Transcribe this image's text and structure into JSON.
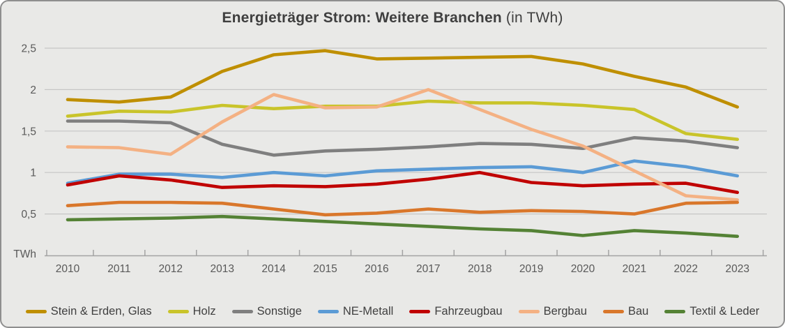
{
  "title": {
    "main": "Energieträger Strom: Weitere Branchen",
    "suffix": " (in TWh)"
  },
  "y_axis": {
    "unit_label": "TWh",
    "tick_labels": [
      "0,5",
      "1",
      "1,5",
      "2",
      "2,5"
    ],
    "tick_values": [
      0.5,
      1,
      1.5,
      2,
      2.5
    ]
  },
  "x_axis": {
    "years": [
      "2010",
      "2011",
      "2012",
      "2013",
      "2014",
      "2015",
      "2016",
      "2017",
      "2018",
      "2019",
      "2020",
      "2021",
      "2022",
      "2023"
    ]
  },
  "colors": {
    "background": "#e9e9e7",
    "gridline": "#c6c6c6",
    "axis": "#a3a3a3",
    "axis_text": "#595959",
    "title_text": "#3f3f3f",
    "legend_text": "#404040"
  },
  "chart_data": {
    "type": "line",
    "title": "Energieträger Strom: Weitere Branchen (in TWh)",
    "xlabel": "",
    "ylabel": "TWh",
    "ylim": [
      0,
      2.5
    ],
    "grid": true,
    "legend_position": "bottom",
    "categories": [
      2010,
      2011,
      2012,
      2013,
      2014,
      2015,
      2016,
      2017,
      2018,
      2019,
      2020,
      2021,
      2022,
      2023
    ],
    "series": [
      {
        "name": "Stein & Erden, Glas",
        "color": "#BF8F00",
        "values": [
          1.88,
          1.85,
          1.91,
          2.22,
          2.42,
          2.47,
          2.37,
          2.38,
          2.39,
          2.4,
          2.31,
          2.16,
          2.03,
          1.79
        ]
      },
      {
        "name": "Holz",
        "color": "#C9C42A",
        "values": [
          1.68,
          1.74,
          1.73,
          1.81,
          1.77,
          1.8,
          1.8,
          1.86,
          1.84,
          1.84,
          1.81,
          1.76,
          1.47,
          1.4
        ]
      },
      {
        "name": "Sonstige",
        "color": "#7F7F7F",
        "values": [
          1.62,
          1.62,
          1.6,
          1.34,
          1.21,
          1.26,
          1.28,
          1.31,
          1.35,
          1.34,
          1.29,
          1.42,
          1.38,
          1.3
        ]
      },
      {
        "name": "NE-Metall",
        "color": "#5B9BD5",
        "values": [
          0.87,
          0.98,
          0.98,
          0.94,
          1.0,
          0.96,
          1.02,
          1.04,
          1.06,
          1.07,
          1.0,
          1.14,
          1.07,
          0.96
        ]
      },
      {
        "name": "Fahrzeugbau",
        "color": "#C00000",
        "values": [
          0.85,
          0.96,
          0.91,
          0.82,
          0.84,
          0.83,
          0.86,
          0.92,
          1.0,
          0.88,
          0.84,
          0.86,
          0.87,
          0.76
        ]
      },
      {
        "name": "Bergbau",
        "color": "#F4B183",
        "values": [
          1.31,
          1.3,
          1.22,
          1.61,
          1.94,
          1.78,
          1.79,
          2.0,
          1.76,
          1.52,
          1.32,
          1.02,
          0.72,
          0.67
        ]
      },
      {
        "name": "Bau",
        "color": "#D9772B",
        "values": [
          0.6,
          0.64,
          0.64,
          0.63,
          0.56,
          0.49,
          0.51,
          0.56,
          0.52,
          0.54,
          0.53,
          0.5,
          0.63,
          0.64
        ]
      },
      {
        "name": "Textil & Leder",
        "color": "#548235",
        "values": [
          0.43,
          0.44,
          0.45,
          0.47,
          0.44,
          0.41,
          0.38,
          0.35,
          0.32,
          0.3,
          0.24,
          0.3,
          0.27,
          0.23
        ]
      }
    ]
  }
}
